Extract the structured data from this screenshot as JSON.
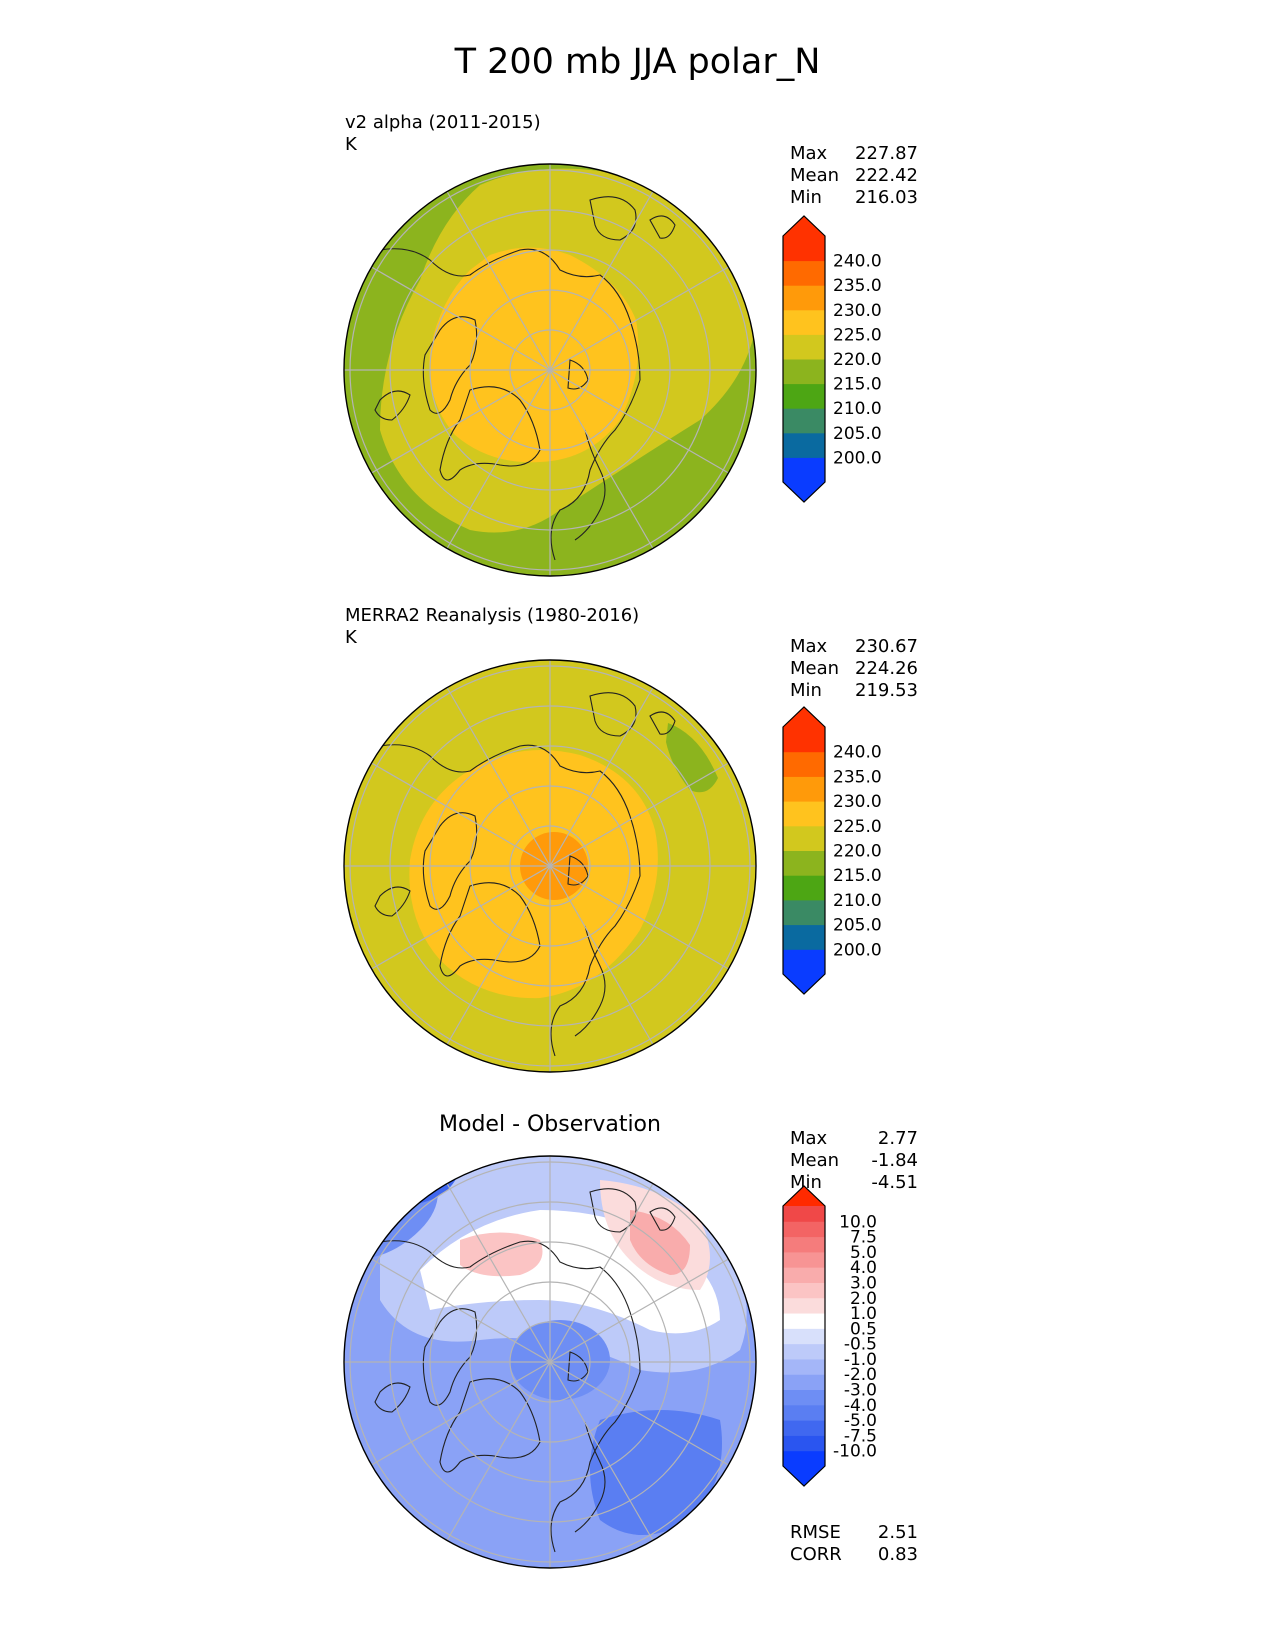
{
  "title": "T 200 mb JJA polar_N",
  "colors": {
    "c200": "#0a3cff",
    "c205": "#0a6aa0",
    "c210": "#3a8a64",
    "c215": "#4da614",
    "c220": "#8cb41e",
    "c225": "#d2c81e",
    "c230": "#ffc31e",
    "c235": "#ff9a0a",
    "c240": "#ff6a00",
    "cmax": "#ff3200",
    "diff": [
      "#0a3cff",
      "#2a55f0",
      "#4068f0",
      "#5a7ef2",
      "#6e8ef4",
      "#8aa2f6",
      "#a4b6f8",
      "#bdcaf9",
      "#d8e0fb",
      "#ffffff",
      "#fbdcdc",
      "#fbc4c4",
      "#f9acac",
      "#f79494",
      "#f57c7c",
      "#f36464",
      "#f04848",
      "#ff2a00"
    ]
  },
  "panels": [
    {
      "id": "model",
      "label": "v2 alpha (2011-2015)",
      "units": "K",
      "stats": [
        {
          "name": "Max",
          "value": "227.87"
        },
        {
          "name": "Mean",
          "value": "222.42"
        },
        {
          "name": "Min",
          "value": "216.03"
        }
      ]
    },
    {
      "id": "obs",
      "label": "MERRA2 Reanalysis (1980-2016)",
      "units": "K",
      "stats": [
        {
          "name": "Max",
          "value": "230.67"
        },
        {
          "name": "Mean",
          "value": "224.26"
        },
        {
          "name": "Min",
          "value": "219.53"
        }
      ]
    },
    {
      "id": "diff",
      "title": "Model - Observation",
      "stats": [
        {
          "name": "Max",
          "value": "2.77"
        },
        {
          "name": "Mean",
          "value": "-1.84"
        },
        {
          "name": "Min",
          "value": "-4.51"
        }
      ],
      "metrics": [
        {
          "name": "RMSE",
          "value": "2.51"
        },
        {
          "name": "CORR",
          "value": "0.83"
        }
      ]
    }
  ],
  "chart_data": [
    {
      "type": "heatmap",
      "projection": "north polar stereographic",
      "title": "v2 alpha (2011-2015)",
      "units": "K",
      "colorbar_levels": [
        200,
        205,
        210,
        215,
        220,
        225,
        230,
        235,
        240
      ],
      "colorbar_tick_labels": [
        "200.0",
        "205.0",
        "210.0",
        "215.0",
        "220.0",
        "225.0",
        "230.0",
        "235.0",
        "240.0"
      ],
      "extend": "both",
      "max": 227.87,
      "mean": 222.42,
      "min": 216.03
    },
    {
      "type": "heatmap",
      "projection": "north polar stereographic",
      "title": "MERRA2 Reanalysis (1980-2016)",
      "units": "K",
      "colorbar_levels": [
        200,
        205,
        210,
        215,
        220,
        225,
        230,
        235,
        240
      ],
      "colorbar_tick_labels": [
        "200.0",
        "205.0",
        "210.0",
        "215.0",
        "220.0",
        "225.0",
        "230.0",
        "235.0",
        "240.0"
      ],
      "extend": "both",
      "max": 230.67,
      "mean": 224.26,
      "min": 219.53
    },
    {
      "type": "heatmap",
      "projection": "north polar stereographic",
      "title": "Model - Observation",
      "colorbar_levels": [
        -10,
        -7.5,
        -5,
        -4,
        -3,
        -2,
        -1,
        -0.5,
        0.5,
        1,
        2,
        3,
        4,
        5,
        7.5,
        10
      ],
      "colorbar_tick_labels": [
        "-10.0",
        "-7.5",
        "-5.0",
        "-4.0",
        "-3.0",
        "-2.0",
        "-1.0",
        "-0.5",
        "0.5",
        "1.0",
        "2.0",
        "3.0",
        "4.0",
        "5.0",
        "7.5",
        "10.0"
      ],
      "extend": "both",
      "max": 2.77,
      "mean": -1.84,
      "min": -4.51,
      "rmse": 2.51,
      "corr": 0.83
    }
  ]
}
